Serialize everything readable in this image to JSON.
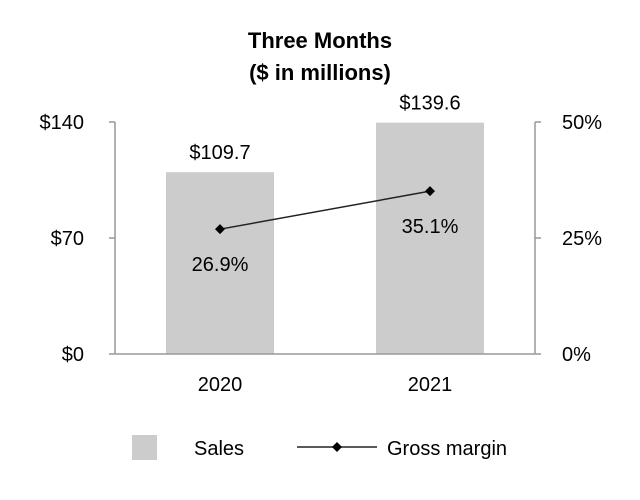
{
  "chart_data": {
    "type": "bar",
    "title": "Three Months",
    "subtitle": "($ in millions)",
    "categories": [
      "2020",
      "2021"
    ],
    "series": [
      {
        "name": "Sales",
        "type": "bar",
        "axis": "left",
        "values": [
          109.7,
          139.6
        ],
        "labels": [
          "$109.7",
          "$139.6"
        ],
        "color": "#cccccc"
      },
      {
        "name": "Gross margin",
        "type": "line",
        "axis": "right",
        "values": [
          26.9,
          35.1
        ],
        "labels": [
          "26.9%",
          "35.1%"
        ],
        "color": "#222222",
        "marker": "diamond"
      }
    ],
    "ylim": [
      0,
      140
    ],
    "y_ticks": [
      {
        "value": 0,
        "label": "$0"
      },
      {
        "value": 70,
        "label": "$70"
      },
      {
        "value": 140,
        "label": "$140"
      }
    ],
    "y2lim": [
      0,
      50
    ],
    "y2_ticks": [
      {
        "value": 0,
        "label": "0%"
      },
      {
        "value": 25,
        "label": "25%"
      },
      {
        "value": 50,
        "label": "50%"
      }
    ],
    "legend": {
      "position": "bottom",
      "entries": [
        "Sales",
        "Gross margin"
      ]
    },
    "grid": false
  }
}
